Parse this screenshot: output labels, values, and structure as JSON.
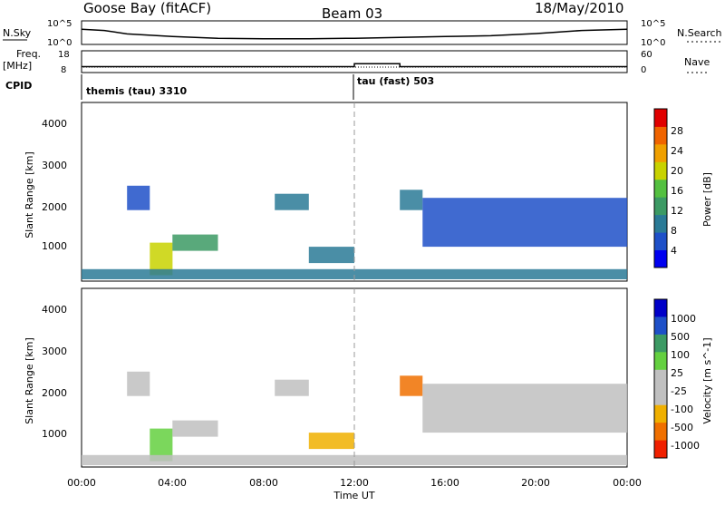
{
  "header": {
    "radar": "Goose Bay (fitACF)",
    "beam": "Beam 03",
    "date": "18/May/2010"
  },
  "noise_panel": {
    "left_label": "N.Sky",
    "right_label": "N.Search",
    "left_ticks": [
      "10^5",
      "10^0"
    ],
    "right_ticks": [
      "10^5",
      "10^0"
    ]
  },
  "freq_panel": {
    "left_label_1": "Freq.",
    "left_label_2": "[MHz]",
    "right_label": "Nave",
    "left_ticks": [
      "18",
      "8"
    ],
    "right_ticks": [
      "60",
      "0"
    ]
  },
  "cpid": {
    "label": "CPID",
    "segments": [
      {
        "label": "themis (tau) 3310",
        "start_hour": 0,
        "end_hour": 12
      },
      {
        "label": "tau (fast) 503",
        "start_hour": 12,
        "end_hour": 24
      }
    ]
  },
  "time_axis": {
    "label": "Time UT",
    "ticks": [
      "00:00",
      "04:00",
      "08:00",
      "12:00",
      "16:00",
      "20:00",
      "00:00"
    ]
  },
  "power_panel": {
    "ylabel": "Slant Range [km]",
    "yticks": [
      "4000",
      "3000",
      "2000",
      "1000"
    ],
    "colorbar_label": "Power [dB]",
    "colorbar_ticks": [
      "28",
      "24",
      "20",
      "16",
      "12",
      "8",
      "4"
    ],
    "colors": [
      "#0000f0",
      "#1e50c8",
      "#2a7a96",
      "#3c9a64",
      "#54c040",
      "#c8d200",
      "#f0a000",
      "#f06400",
      "#e00000"
    ]
  },
  "velocity_panel": {
    "ylabel": "Slant Range [km]",
    "yticks": [
      "4000",
      "3000",
      "2000",
      "1000"
    ],
    "colorbar_label": "Velocity [m s^-1]",
    "colorbar_ticks": [
      "1000",
      "500",
      "100",
      "25",
      "-25",
      "-100",
      "-500",
      "-1000"
    ],
    "colors": [
      "#0000c8",
      "#1e50c8",
      "#3c9a64",
      "#64d040",
      "#c0c0c0",
      "#c0c0c0",
      "#f0b000",
      "#f07000",
      "#f02000"
    ]
  },
  "chart_data": [
    {
      "type": "line",
      "title": "N.Sky / N.Search",
      "x_label": "Time UT",
      "xlim": [
        0,
        24
      ],
      "series": [
        {
          "name": "N.Sky",
          "x": [
            0,
            1,
            2,
            4,
            6,
            8,
            10,
            12,
            14,
            16,
            18,
            20,
            22,
            24
          ],
          "y_log10": [
            3.3,
            3.0,
            2.2,
            1.6,
            1.2,
            1.1,
            1.1,
            1.2,
            1.4,
            1.6,
            1.8,
            2.3,
            3.0,
            3.3
          ]
        }
      ]
    },
    {
      "type": "line",
      "title": "Freq. [MHz]",
      "xlim": [
        0,
        24
      ],
      "ylim": [
        8,
        18
      ],
      "series": [
        {
          "name": "Freq.",
          "x": [
            0,
            12,
            12,
            14,
            14,
            24
          ],
          "y": [
            10.5,
            10.5,
            12.0,
            12.0,
            10.5,
            10.5
          ]
        }
      ]
    },
    {
      "type": "heatmap",
      "title": "Power [dB]",
      "xlabel": "Time UT",
      "ylabel": "Slant Range [km]",
      "xlim": [
        0,
        24
      ],
      "ylim": [
        200,
        4500
      ],
      "patches": [
        {
          "t0": 2.0,
          "t1": 3.0,
          "r0": 1900,
          "r1": 2500,
          "value": 7
        },
        {
          "t0": 3.0,
          "t1": 4.0,
          "r0": 300,
          "r1": 1100,
          "value": 20
        },
        {
          "t0": 4.0,
          "t1": 6.0,
          "r0": 900,
          "r1": 1300,
          "value": 12
        },
        {
          "t0": 8.5,
          "t1": 10.0,
          "r0": 1900,
          "r1": 2300,
          "value": 8
        },
        {
          "t0": 10.0,
          "t1": 12.0,
          "r0": 600,
          "r1": 1000,
          "value": 10
        },
        {
          "t0": 14.0,
          "t1": 15.0,
          "r0": 1900,
          "r1": 2400,
          "value": 8
        },
        {
          "t0": 15.0,
          "t1": 24.0,
          "r0": 1000,
          "r1": 2200,
          "value": 6
        },
        {
          "t0": 0.0,
          "t1": 24.0,
          "r0": 200,
          "r1": 450,
          "value": 10
        }
      ]
    },
    {
      "type": "heatmap",
      "title": "Velocity [m s^-1]",
      "xlabel": "Time UT",
      "ylabel": "Slant Range [km]",
      "xlim": [
        0,
        24
      ],
      "ylim": [
        200,
        4500
      ],
      "patches": [
        {
          "t0": 2.0,
          "t1": 3.0,
          "r0": 1900,
          "r1": 2500,
          "value": 0
        },
        {
          "t0": 3.0,
          "t1": 4.0,
          "r0": 300,
          "r1": 1100,
          "value": 50
        },
        {
          "t0": 4.0,
          "t1": 6.0,
          "r0": 900,
          "r1": 1300,
          "value": 0
        },
        {
          "t0": 8.5,
          "t1": 10.0,
          "r0": 1900,
          "r1": 2300,
          "value": 0
        },
        {
          "t0": 10.0,
          "t1": 12.0,
          "r0": 600,
          "r1": 1000,
          "value": -100
        },
        {
          "t0": 14.0,
          "t1": 15.0,
          "r0": 1900,
          "r1": 2400,
          "value": -500
        },
        {
          "t0": 15.0,
          "t1": 24.0,
          "r0": 1000,
          "r1": 2200,
          "value": 0
        },
        {
          "t0": 0.0,
          "t1": 24.0,
          "r0": 200,
          "r1": 450,
          "value": 0
        }
      ]
    }
  ]
}
